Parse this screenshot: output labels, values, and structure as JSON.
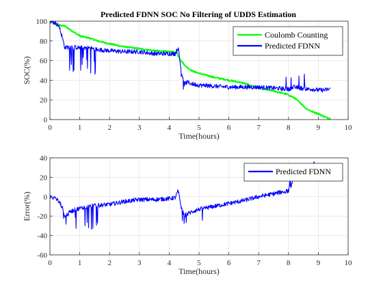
{
  "chart_data": [
    {
      "type": "line",
      "title": "Predicted FDNN SOC No Filtering of UDDS Estimation",
      "xlabel": "Time(hours)",
      "ylabel": "SOC(%)",
      "xlim": [
        0,
        10
      ],
      "ylim": [
        0,
        100
      ],
      "xticks": [
        "0",
        "1",
        "2",
        "3",
        "4",
        "5",
        "6",
        "7",
        "8",
        "9",
        "10"
      ],
      "yticks": [
        "0",
        "20",
        "40",
        "60",
        "80",
        "100"
      ],
      "grid": true,
      "legend_position": "top-right",
      "series": [
        {
          "name": "Coulomb Counting",
          "color": "#00ff00",
          "x": [
            0,
            0.2,
            0.3,
            0.5,
            0.6,
            0.8,
            1.0,
            1.3,
            1.6,
            2.0,
            2.5,
            3.0,
            3.5,
            4.0,
            4.25,
            4.35,
            4.4,
            4.5,
            4.6,
            4.8,
            5.0,
            5.5,
            6.0,
            6.5,
            7.0,
            7.5,
            7.8,
            8.0,
            8.2,
            8.4,
            8.6,
            8.8,
            9.0,
            9.2,
            9.4
          ],
          "y": [
            100,
            97,
            96,
            95,
            93,
            89,
            85,
            83,
            80,
            77,
            74,
            72,
            70,
            69,
            68,
            62,
            60,
            56,
            53,
            49,
            47,
            43,
            40,
            37,
            32,
            29,
            27,
            25,
            22,
            17,
            11,
            8,
            6,
            3,
            1
          ]
        },
        {
          "name": "Predicted FDNN",
          "color": "#0000ff",
          "x": [
            0,
            0.2,
            0.3,
            0.4,
            0.5,
            0.7,
            1.0,
            1.3,
            1.6,
            2.0,
            2.5,
            3.0,
            3.5,
            4.0,
            4.2,
            4.3,
            4.4,
            4.5,
            4.6,
            4.8,
            5.0,
            5.5,
            6.0,
            6.5,
            7.0,
            7.5,
            8.0,
            8.2,
            8.4,
            8.6,
            8.8,
            9.0,
            9.2,
            9.4
          ],
          "y": [
            100,
            98,
            95,
            85,
            73,
            74,
            73,
            73,
            71,
            70,
            69,
            69,
            67,
            67,
            67,
            73,
            50,
            36,
            38,
            36,
            35,
            34,
            33,
            33,
            33,
            32,
            31,
            33,
            32,
            31,
            31,
            30,
            30,
            31
          ]
        }
      ]
    },
    {
      "type": "line",
      "title": "",
      "xlabel": "Time(hours)",
      "ylabel": "Error(%)",
      "xlim": [
        0,
        10
      ],
      "ylim": [
        -60,
        40
      ],
      "xticks": [
        "0",
        "1",
        "2",
        "3",
        "4",
        "5",
        "6",
        "7",
        "8",
        "9",
        "10"
      ],
      "yticks": [
        "-60",
        "-40",
        "-20",
        "0",
        "20",
        "40"
      ],
      "grid": true,
      "legend_position": "top-right",
      "series": [
        {
          "name": "Predicted FDNN",
          "color": "#0000ff",
          "x": [
            0,
            0.2,
            0.3,
            0.4,
            0.5,
            0.6,
            0.7,
            1.0,
            1.3,
            1.6,
            2.0,
            2.5,
            3.0,
            3.5,
            4.0,
            4.2,
            4.3,
            4.4,
            4.5,
            4.6,
            4.8,
            5.0,
            5.5,
            6.0,
            6.5,
            7.0,
            7.5,
            7.8,
            8.0,
            8.1,
            8.2,
            8.4,
            8.6,
            8.8,
            8.85,
            9.0
          ],
          "y": [
            0,
            -2,
            -5,
            -10,
            -20,
            -18,
            -15,
            -12,
            -10,
            -9,
            -8,
            -5,
            -3,
            -3,
            -2,
            -1,
            6,
            -10,
            -20,
            -18,
            -15,
            -13,
            -10,
            -7,
            -4,
            0,
            3,
            5,
            6,
            12,
            20,
            22,
            22,
            23,
            35,
            27
          ]
        }
      ]
    }
  ]
}
